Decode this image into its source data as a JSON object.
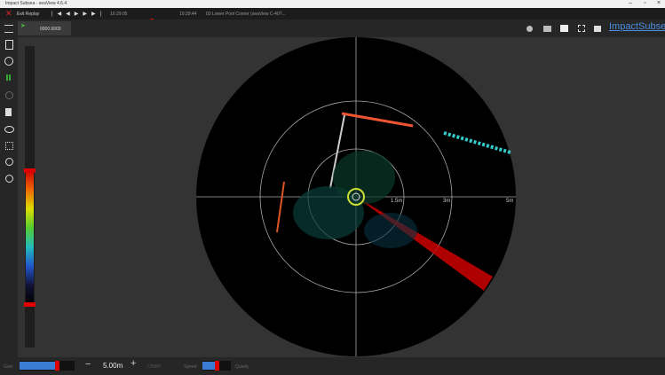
{
  "window_title": "Impact Subsea - seaView 4.6.4",
  "toolbar": {
    "exit_replay": "Exit Replay",
    "start_time": "10:29:05",
    "end_time": "10:29:44",
    "file": "03 Lower Pool Corner (seaView C-40?..."
  },
  "tab": {
    "counter": "0000.0000"
  },
  "brand": "ImpactSubsea",
  "sonar": {
    "range_labels": [
      "1.5m",
      "3m",
      "5m"
    ]
  },
  "bottom": {
    "gain_label": "Gain",
    "range": "5.00m",
    "chirp_label": "CHIRP",
    "speed_label": "Speed",
    "quality_label": "Quality"
  }
}
